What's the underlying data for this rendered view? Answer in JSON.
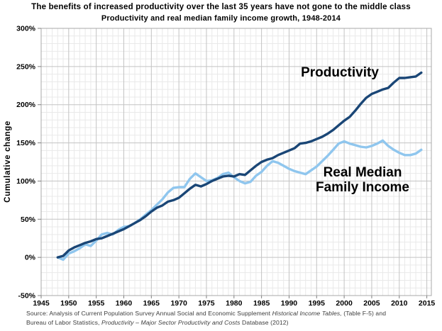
{
  "title": "The benefits of increased productivity over the last 35 years have not gone to the middle class",
  "subtitle": "Productivity and real median family income growth, 1948-2014",
  "annotations": {
    "productivity": "Productivity",
    "income_line1": "Real Median",
    "income_line2": "Family Income"
  },
  "source": {
    "line1_text": "Source:  Analysis of Current Population Survey Annual Social and Economic Supplement ",
    "line1_italic": "Historical Income Tables,",
    "line1_end": " (Table F-5) and",
    "line2_text": "Bureau of Labor Statistics, ",
    "line2_italic": "Productivity – Major Sector Productivity and Costs",
    "line2_end": " Database (2012)"
  },
  "colors": {
    "productivity_line": "#1a4676",
    "income_line": "#8fc6ee",
    "grid_major": "#c3c3c3",
    "grid_minor": "#e9e9e9",
    "plot_border": "#a8a8a8",
    "tick_mark": "#808080",
    "source_text": "#3d3d3d"
  },
  "chart_data": {
    "type": "line",
    "title": "The benefits of increased productivity over the last 35 years have not gone to the middle class",
    "subtitle": "Productivity and real median family income growth, 1948-2014",
    "xlabel": "",
    "ylabel": "Cumulative change",
    "xlim": [
      1945,
      2015
    ],
    "ylim": [
      -50,
      300
    ],
    "x_ticks": [
      1945,
      1950,
      1955,
      1960,
      1965,
      1970,
      1975,
      1980,
      1985,
      1990,
      1995,
      2000,
      2005,
      2010,
      2015
    ],
    "y_ticks": [
      300,
      250,
      200,
      150,
      100,
      50,
      0,
      -50
    ],
    "y_tick_suffix": "%",
    "grid": {
      "x_minor_step": 1,
      "x_major_step": 5,
      "y_minor_step": 10,
      "y_major_step": 50
    },
    "legend_position": "inline-annotations",
    "x": [
      1948,
      1949,
      1950,
      1951,
      1952,
      1953,
      1954,
      1955,
      1956,
      1957,
      1958,
      1959,
      1960,
      1961,
      1962,
      1963,
      1964,
      1965,
      1966,
      1967,
      1968,
      1969,
      1970,
      1971,
      1972,
      1973,
      1974,
      1975,
      1976,
      1977,
      1978,
      1979,
      1980,
      1981,
      1982,
      1983,
      1984,
      1985,
      1986,
      1987,
      1988,
      1989,
      1990,
      1991,
      1992,
      1993,
      1994,
      1995,
      1996,
      1997,
      1998,
      1999,
      2000,
      2001,
      2002,
      2003,
      2004,
      2005,
      2006,
      2007,
      2008,
      2009,
      2010,
      2011,
      2012,
      2013,
      2014
    ],
    "series": [
      {
        "name": "Productivity",
        "color": "#1a4676",
        "values": [
          0,
          2,
          9,
          13,
          16,
          19,
          21,
          24,
          25,
          28,
          31,
          34,
          37,
          41,
          45,
          49,
          54,
          60,
          65,
          68,
          73,
          75,
          78,
          84,
          90,
          95,
          93,
          96,
          100,
          103,
          106,
          107,
          106,
          109,
          108,
          114,
          120,
          125,
          128,
          130,
          134,
          137,
          140,
          143,
          149,
          150,
          152,
          155,
          158,
          162,
          167,
          173,
          179,
          184,
          192,
          201,
          209,
          214,
          217,
          220,
          222,
          229,
          235,
          235,
          236,
          237,
          242
        ]
      },
      {
        "name": "Real Median Family Income",
        "color": "#8fc6ee",
        "values": [
          0,
          -3,
          5,
          8,
          12,
          17,
          15,
          22,
          30,
          32,
          30,
          36,
          40,
          41,
          45,
          50,
          56,
          62,
          69,
          76,
          85,
          91,
          92,
          92,
          103,
          110,
          105,
          100,
          101,
          104,
          109,
          111,
          105,
          100,
          97,
          99,
          107,
          112,
          120,
          126,
          124,
          120,
          116,
          113,
          111,
          109,
          114,
          119,
          126,
          133,
          141,
          149,
          152,
          149,
          147,
          145,
          144,
          146,
          149,
          153,
          146,
          141,
          137,
          134,
          134,
          136,
          141
        ]
      }
    ]
  }
}
